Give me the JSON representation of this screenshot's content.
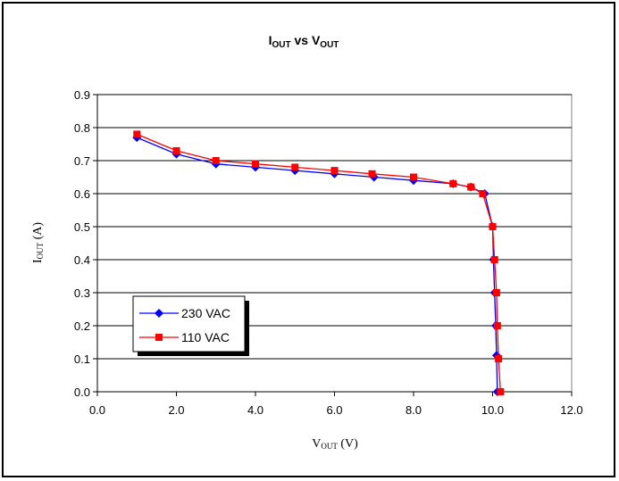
{
  "chart_data": {
    "type": "scatter",
    "title": {
      "main": "I",
      "sub": "OUT",
      "mid": " vs V",
      "sub2": "OUT"
    },
    "xlabel": {
      "main": "V",
      "sub": "OUT",
      "tail": " (V)"
    },
    "ylabel": {
      "main": "I",
      "sub": "OUT",
      "tail": " (A)"
    },
    "xlim": [
      0,
      12
    ],
    "ylim": [
      0,
      0.9
    ],
    "xticks": [
      "0.0",
      "2.0",
      "4.0",
      "6.0",
      "8.0",
      "10.0",
      "12.0"
    ],
    "yticks": [
      "0.0",
      "0.1",
      "0.2",
      "0.3",
      "0.4",
      "0.5",
      "0.6",
      "0.7",
      "0.8",
      "0.9"
    ],
    "grid": "horizontal",
    "legend_position": "lower-left",
    "series": [
      {
        "name": "230 VAC",
        "color": "#0000ff",
        "marker": "diamond",
        "x": [
          1.0,
          2.0,
          3.0,
          4.0,
          5.0,
          6.0,
          7.0,
          8.0,
          9.0,
          9.45,
          9.8,
          10.0,
          10.02,
          10.05,
          10.08,
          10.1,
          10.12
        ],
        "y": [
          0.77,
          0.72,
          0.69,
          0.68,
          0.67,
          0.66,
          0.65,
          0.64,
          0.63,
          0.62,
          0.6,
          0.5,
          0.4,
          0.3,
          0.2,
          0.11,
          0.0
        ]
      },
      {
        "name": "110 VAC",
        "color": "#ff0000",
        "marker": "square",
        "x": [
          1.0,
          2.0,
          3.0,
          4.0,
          5.0,
          6.0,
          6.95,
          8.0,
          9.0,
          9.45,
          9.75,
          10.0,
          10.05,
          10.1,
          10.12,
          10.15,
          10.2
        ],
        "y": [
          0.78,
          0.73,
          0.7,
          0.69,
          0.68,
          0.67,
          0.66,
          0.65,
          0.63,
          0.62,
          0.6,
          0.5,
          0.4,
          0.3,
          0.2,
          0.1,
          0.0
        ]
      }
    ]
  }
}
